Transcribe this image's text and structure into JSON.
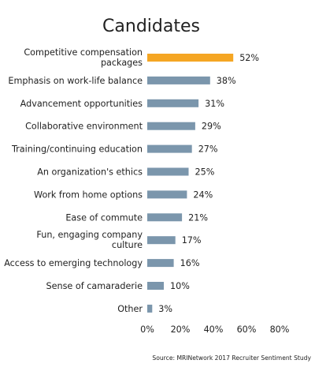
{
  "chart_data": {
    "type": "bar",
    "orientation": "horizontal",
    "title": "Candidates",
    "categories": [
      "Competitive compensation packages",
      "Emphasis on work-life balance",
      "Advancement opportunities",
      "Collaborative environment",
      "Training/continuing education",
      "An organization's ethics",
      "Work from home options",
      "Ease of commute",
      "Fun, engaging company culture",
      "Access to emerging technology",
      "Sense of camaraderie",
      "Other"
    ],
    "category_lines": [
      [
        "Competitive compensation",
        "packages"
      ],
      [
        "Emphasis on work-life balance"
      ],
      [
        "Advancement opportunities"
      ],
      [
        "Collaborative environment"
      ],
      [
        "Training/continuing education"
      ],
      [
        "An organization's ethics"
      ],
      [
        "Work from home options"
      ],
      [
        "Ease of commute"
      ],
      [
        "Fun, engaging company",
        "culture"
      ],
      [
        "Access to emerging technology"
      ],
      [
        "Sense of camaraderie"
      ],
      [
        "Other"
      ]
    ],
    "values": [
      52,
      38,
      31,
      29,
      27,
      25,
      24,
      21,
      17,
      16,
      10,
      3
    ],
    "value_labels": [
      "52%",
      "38%",
      "31%",
      "29%",
      "27%",
      "25%",
      "24%",
      "21%",
      "17%",
      "16%",
      "10%",
      "3%"
    ],
    "xlim": [
      0,
      80
    ],
    "x_ticks": [
      0,
      20,
      40,
      60,
      80
    ],
    "x_tick_labels": [
      "0%",
      "20%",
      "40%",
      "60%",
      "80%"
    ],
    "grid": false,
    "colors": {
      "highlight": "#F5A623",
      "default": "#7B96AC",
      "text": "#222222"
    },
    "highlight_index": 0,
    "source": "Source: MRINetwork 2017 Recruiter Sentiment Study"
  }
}
